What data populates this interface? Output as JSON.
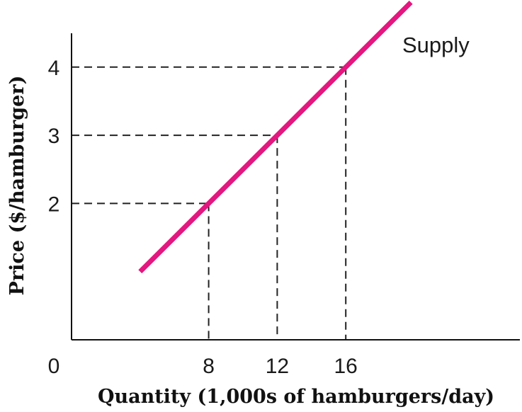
{
  "chart_data": {
    "type": "line",
    "title": "",
    "xlabel": "Quantity (1,000s of hamburgers/day)",
    "ylabel": "Price ($/hamburger)",
    "origin_label": "0",
    "xlim": [
      0,
      20
    ],
    "ylim": [
      0,
      4.5
    ],
    "x_ticks": [
      8,
      12,
      16
    ],
    "y_ticks": [
      2,
      3,
      4
    ],
    "grid": false,
    "legend": "none",
    "series": [
      {
        "name": "Supply",
        "color": "#e3177f",
        "points": [
          [
            4,
            1
          ],
          [
            8,
            2
          ],
          [
            12,
            3
          ],
          [
            16,
            4
          ],
          [
            19.8,
            4.95
          ]
        ]
      }
    ],
    "guides": [
      {
        "x": 8,
        "y": 2
      },
      {
        "x": 12,
        "y": 3
      },
      {
        "x": 16,
        "y": 4
      }
    ]
  }
}
